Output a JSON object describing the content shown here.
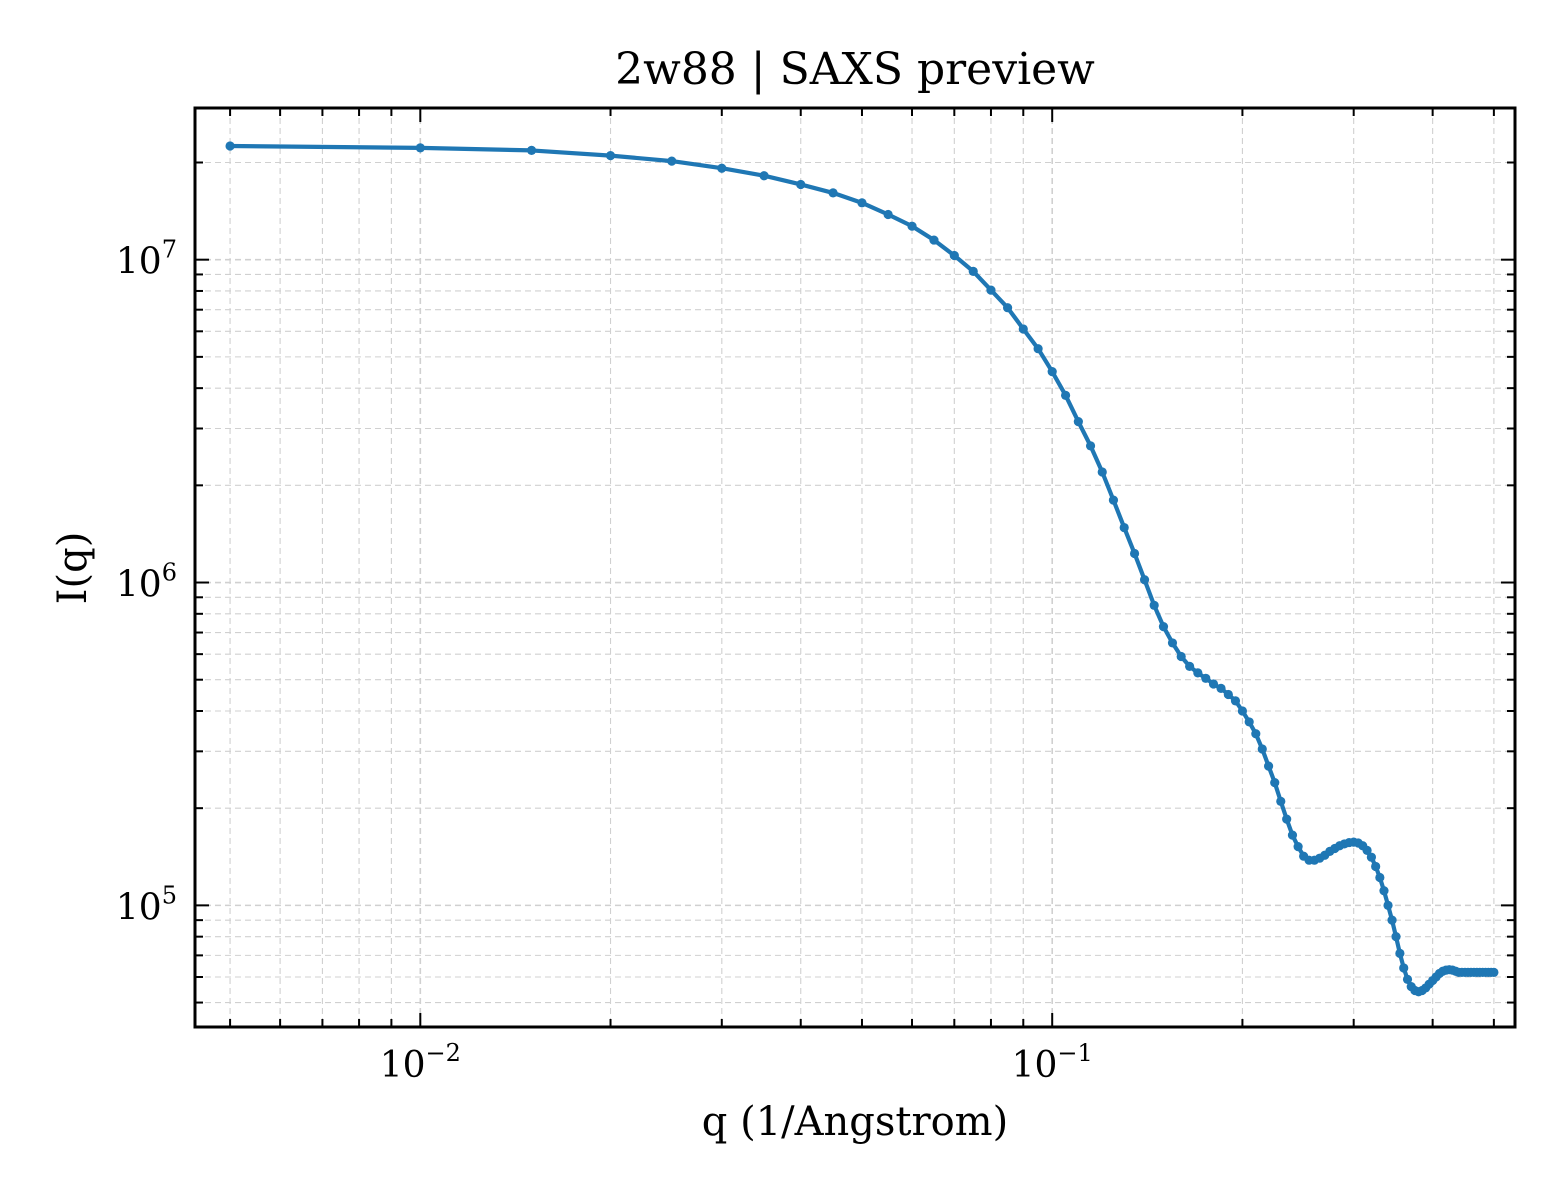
{
  "chart_data": {
    "type": "line",
    "title": "2w88 | SAXS preview",
    "xlabel": "q (1/Angstrom)",
    "ylabel": "I(q)",
    "xscale": "log",
    "yscale": "log",
    "xlim": [
      0.0044,
      0.54
    ],
    "ylim": [
      42000,
      29500000
    ],
    "grid": true,
    "legend": "none",
    "x_ticks": [
      {
        "value": 0.01,
        "base": "10",
        "exp": "−2"
      },
      {
        "value": 0.1,
        "base": "10",
        "exp": "−1"
      }
    ],
    "y_ticks": [
      {
        "value": 100000,
        "base": "10",
        "exp": "5"
      },
      {
        "value": 1000000,
        "base": "10",
        "exp": "6"
      },
      {
        "value": 10000000,
        "base": "10",
        "exp": "7"
      }
    ],
    "colors": {
      "line": "#1f77b4",
      "grid": "#d0d0d0"
    },
    "series": [
      {
        "x": [
          0.005,
          0.01,
          0.015,
          0.02,
          0.025,
          0.03,
          0.035,
          0.04,
          0.045,
          0.05,
          0.055,
          0.06,
          0.065,
          0.07,
          0.075,
          0.08,
          0.085,
          0.09,
          0.095,
          0.1,
          0.105,
          0.11,
          0.115,
          0.12,
          0.125,
          0.13,
          0.135,
          0.14,
          0.145,
          0.15,
          0.155,
          0.16,
          0.165,
          0.17,
          0.175,
          0.18,
          0.185,
          0.19,
          0.195,
          0.2,
          0.205,
          0.21,
          0.215,
          0.22,
          0.225,
          0.23,
          0.235,
          0.24,
          0.245,
          0.25,
          0.255,
          0.26,
          0.265,
          0.27,
          0.275,
          0.28,
          0.285,
          0.29,
          0.295,
          0.3,
          0.305,
          0.31,
          0.315,
          0.32,
          0.325,
          0.33,
          0.335,
          0.34,
          0.345,
          0.35,
          0.355,
          0.36,
          0.365,
          0.37,
          0.375,
          0.38,
          0.385,
          0.39,
          0.395,
          0.4,
          0.405,
          0.41,
          0.415,
          0.42,
          0.425,
          0.43,
          0.435,
          0.44,
          0.445,
          0.45,
          0.455,
          0.46,
          0.465,
          0.47,
          0.475,
          0.48,
          0.485,
          0.49,
          0.495,
          0.5
        ],
        "y": [
          22500000,
          22200000,
          21800000,
          21000000,
          20200000,
          19200000,
          18200000,
          17100000,
          16100000,
          15000000,
          13800000,
          12700000,
          11500000,
          10300000,
          9200000,
          8050000,
          7100000,
          6100000,
          5300000,
          4500000,
          3800000,
          3150000,
          2650000,
          2200000,
          1800000,
          1480000,
          1230000,
          1020000,
          850000,
          730000,
          650000,
          590000,
          550000,
          525000,
          505000,
          485000,
          470000,
          450000,
          430000,
          400000,
          370000,
          340000,
          305000,
          270000,
          240000,
          210000,
          185000,
          165000,
          152000,
          142000,
          138000,
          138000,
          140000,
          143000,
          147000,
          150000,
          153000,
          155000,
          156500,
          157000,
          156000,
          153000,
          148000,
          141000,
          132000,
          122000,
          111000,
          100000,
          90000,
          80000,
          71000,
          64000,
          59000,
          56000,
          54500,
          54000,
          54500,
          55500,
          57000,
          58500,
          60000,
          61500,
          62500,
          63000,
          63200,
          63000,
          62500,
          62000,
          62000,
          62000,
          62000,
          62000,
          62000,
          62000,
          62000,
          62000,
          62000,
          62000,
          62000,
          62000
        ]
      }
    ]
  }
}
